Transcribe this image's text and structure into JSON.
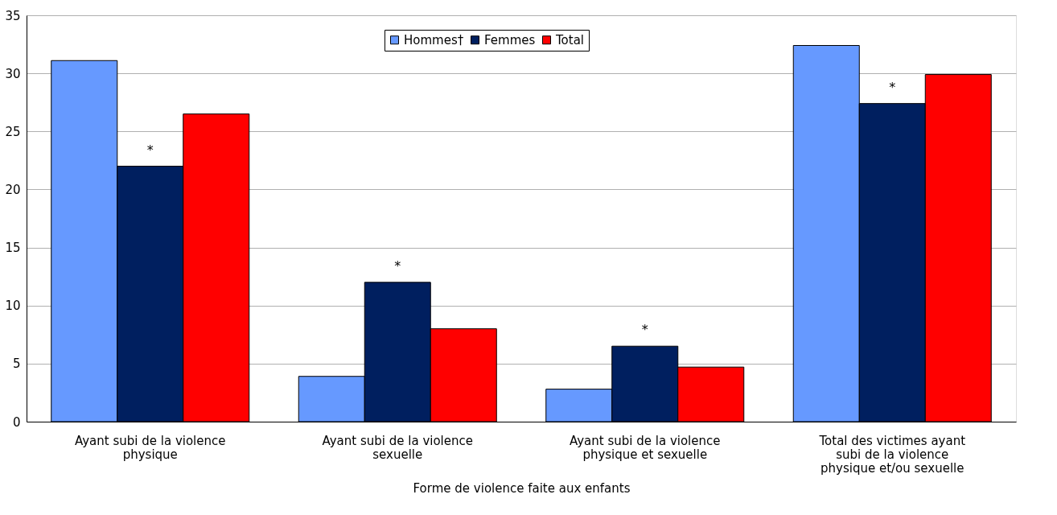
{
  "chart_data": {
    "type": "bar",
    "xlabel": "Forme de violence faite aux enfants",
    "categories": [
      "Ayant subi de la violence physique",
      "Ayant subi de la violence sexuelle",
      "Ayant subi de la violence physique et sexuelle",
      "Total des victimes ayant subi de la violence physique et/ou sexuelle"
    ],
    "series": [
      {
        "name": "Hommes†",
        "color": "#6699ff",
        "values": [
          31.1,
          3.9,
          2.8,
          32.4
        ]
      },
      {
        "name": "Femmes",
        "color": "#001f5f",
        "values": [
          22.0,
          12.0,
          6.5,
          27.4
        ]
      },
      {
        "name": "Total",
        "color": "#ff0000",
        "values": [
          26.5,
          8.0,
          4.7,
          29.9
        ]
      }
    ],
    "annotations": [
      {
        "text": "*",
        "x": "Ayant subi de la violence physique",
        "y": 22.0
      },
      {
        "text": "*",
        "x": "Ayant subi de la violence sexuelle",
        "y": 12.0
      },
      {
        "text": "*",
        "x": "Ayant subi de la violence physique et sexuelle",
        "y": 6.5
      },
      {
        "text": "*",
        "x": "Total des victimes ayant subi de la violence physique et/ou sexuelle",
        "y": 27.4
      }
    ],
    "ylim": [
      0,
      35
    ],
    "yticks": [
      0,
      5,
      10,
      15,
      20,
      25,
      30,
      35
    ],
    "grid": "y",
    "legend": "top"
  }
}
